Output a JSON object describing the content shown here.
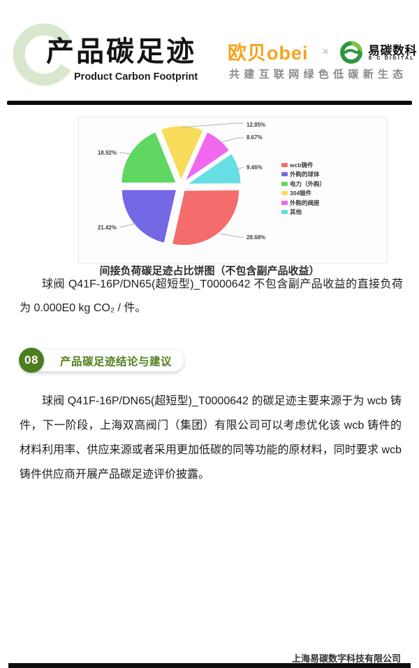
{
  "header": {
    "title": "产品碳足迹",
    "subtitle": "Product Carbon Footprint",
    "partner_brand": "欧贝obei",
    "cross": "×",
    "brand_name": "易碳数科",
    "brand_caption": "E·C DIGITAL",
    "tagline": "共建互联网绿色低碳新生态",
    "ring_color": "#d9e7cf",
    "partner_color": "#f4a41d",
    "brand_green": "#2e9640"
  },
  "chart_data": {
    "type": "pie",
    "title": "间接负荷碳足迹占比饼图（不包含副产品收益）",
    "legend_position": "right",
    "value_unit": "%",
    "slices": [
      {
        "label": "wcb铸件",
        "value": 28.68,
        "color": "#f56c6c"
      },
      {
        "label": "外购的球体",
        "value": 21.42,
        "color": "#7468e4"
      },
      {
        "label": "电力（外购）",
        "value": 18.92,
        "color": "#5fd761"
      },
      {
        "label": "304锻件",
        "value": 12.85,
        "color": "#f9dc5c"
      },
      {
        "label": "外购的阀座",
        "value": 8.67,
        "color": "#f168ee"
      },
      {
        "label": "其他",
        "value": 9.46,
        "color": "#67dee3"
      }
    ]
  },
  "body": {
    "para1": "球阀 Q41F-16P/DN65(超短型)_T0000642 不包含副产品收益的直接负荷为 0.000E0 kg CO₂ / 件。"
  },
  "section": {
    "number": "08",
    "title": "产品碳足迹结论与建议"
  },
  "conclusion": {
    "para": "球阀 Q41F-16P/DN65(超短型)_T0000642 的碳足迹主要来源于为 wcb 铸件，下一阶段，上海双高阀门（集团）有限公司可以考虑优化该 wcb 铸件的材料利用率、供应来源或者采用更加低碳的同等功能的原材料，同时要求 wcb 铸件供应商开展产品碳足迹评价披露。"
  },
  "footer": {
    "company": "上海易碳数字科技有限公司"
  }
}
